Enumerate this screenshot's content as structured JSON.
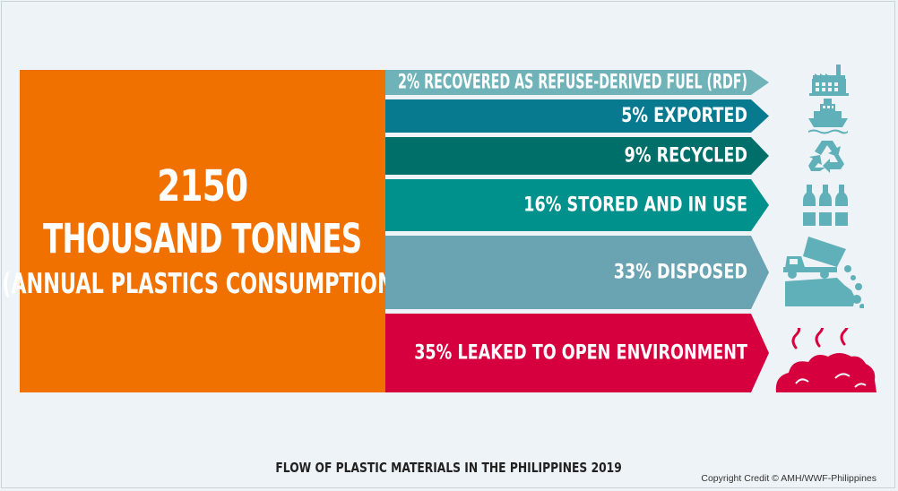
{
  "total": {
    "value": "2150",
    "unit": "THOUSAND TONNES",
    "subtitle": "(ANNUAL PLASTICS CONSUMPTION)"
  },
  "flows": [
    {
      "label": "2% RECOVERED AS REFUSE-DERIVED FUEL (RDF)",
      "percent": 2,
      "color": "#6fb3b9",
      "icon": "factory-icon"
    },
    {
      "label": "5% EXPORTED",
      "percent": 5,
      "color": "#087a90",
      "icon": "cargo-ship-icon"
    },
    {
      "label": "9% RECYCLED",
      "percent": 9,
      "color": "#006f69",
      "icon": "recycle-icon"
    },
    {
      "label": "16% STORED AND IN USE",
      "percent": 16,
      "color": "#00918c",
      "icon": "bottles-icon"
    },
    {
      "label": "33% DISPOSED",
      "percent": 33,
      "color": "#6aa3b1",
      "icon": "dump-truck-icon"
    },
    {
      "label": "35% LEAKED TO OPEN ENVIRONMENT",
      "percent": 35,
      "color": "#d6003e",
      "icon": "trash-pile-icon"
    }
  ],
  "colors": {
    "source": "#f07100",
    "icons": "#5fb0b8",
    "leak_icon": "#d6003e",
    "background": "#edf3f6"
  },
  "caption": "FLOW OF PLASTIC MATERIALS IN THE PHILIPPINES 2019",
  "credit": "Copyright Credit © AMH/WWF-Philippines"
}
